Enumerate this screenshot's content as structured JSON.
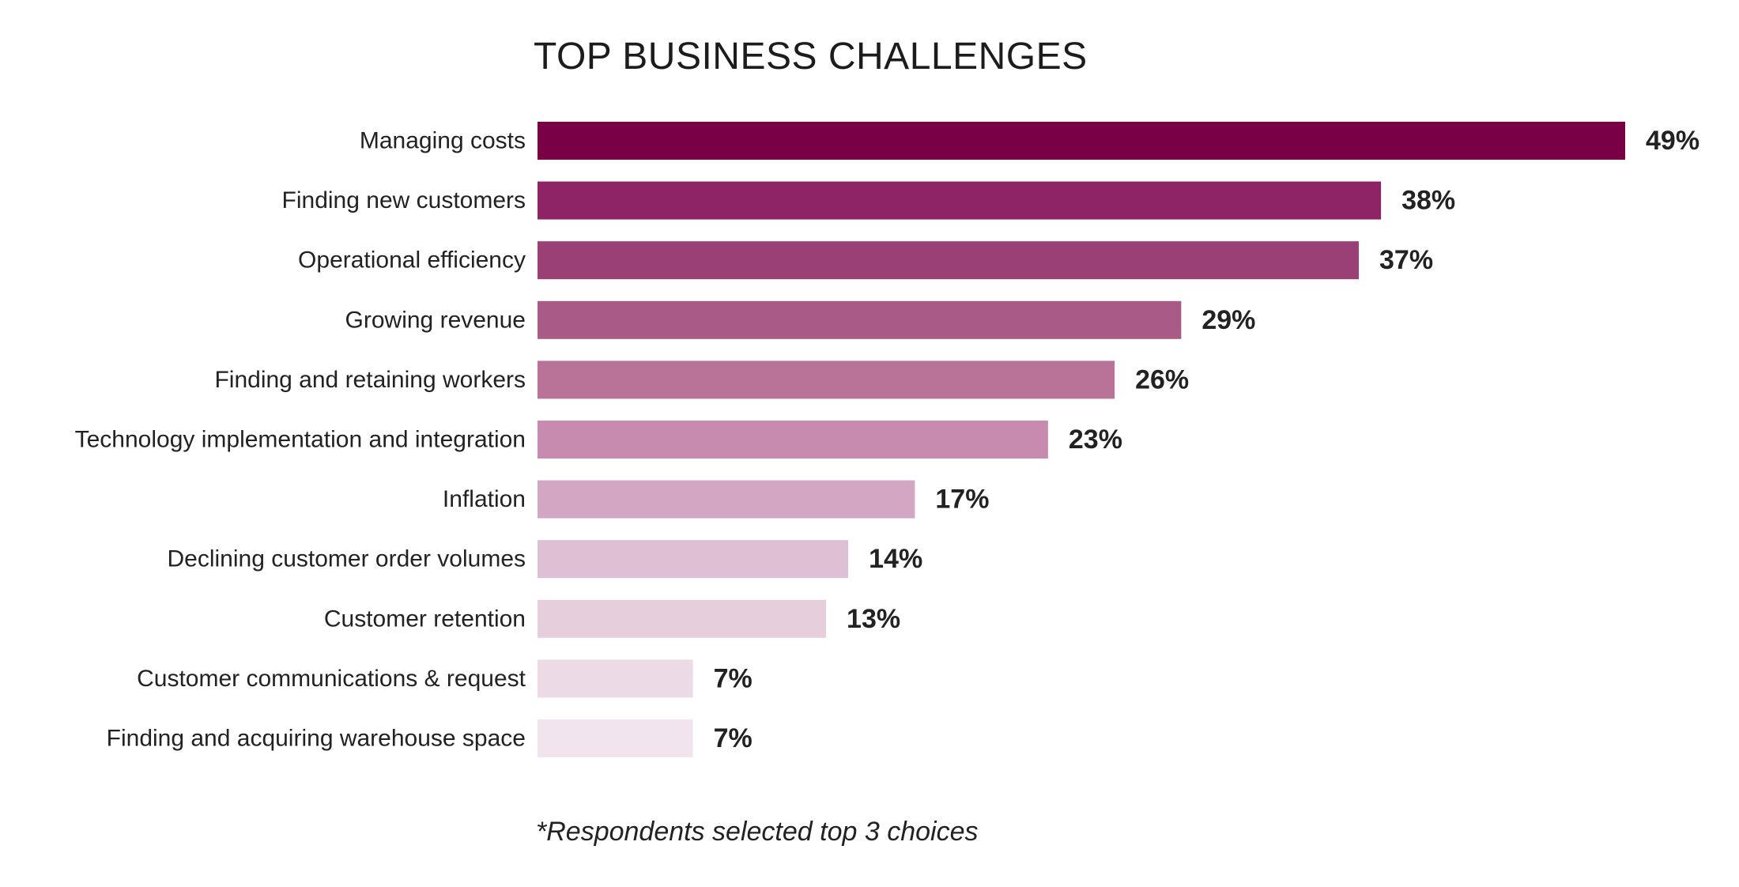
{
  "chart_data": {
    "type": "bar",
    "orientation": "horizontal",
    "title": "TOP BUSINESS CHALLENGES",
    "note": "*Respondents selected top 3 choices",
    "grid": false,
    "legend": "none",
    "value_suffix": "%",
    "xlim": [
      0,
      49
    ],
    "categories": [
      "Managing costs",
      "Finding new customers",
      "Operational efficiency",
      "Growing revenue",
      "Finding and retaining workers",
      "Technology implementation and integration",
      "Inflation",
      "Declining customer order volumes",
      "Customer retention",
      "Customer communications & request",
      "Finding and acquiring warehouse space"
    ],
    "values": [
      49,
      38,
      37,
      29,
      26,
      23,
      17,
      14,
      13,
      7,
      7
    ],
    "value_labels": [
      "49%",
      "38%",
      "37%",
      "29%",
      "26%",
      "23%",
      "17%",
      "14%",
      "13%",
      "7%",
      "7%"
    ],
    "colors": [
      "#7a0046",
      "#8e2365",
      "#9b3f77",
      "#a95a87",
      "#b97399",
      "#c68bae",
      "#d3a7c3",
      "#dec0d4",
      "#e6cedd",
      "#ecdbe6",
      "#f2e4ee"
    ]
  }
}
